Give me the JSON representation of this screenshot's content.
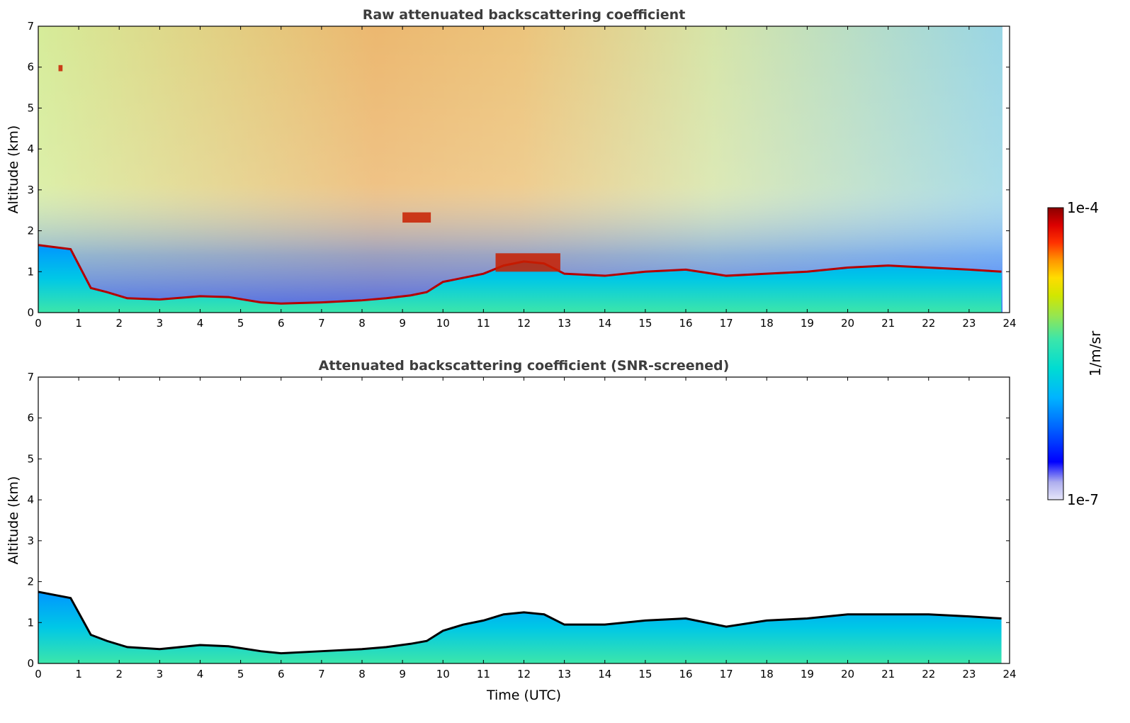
{
  "chart_data": [
    {
      "type": "heatmap",
      "title": "Raw attenuated backscattering coefficient",
      "xlabel": "",
      "ylabel": "Altitude (km)",
      "xlim": [
        0,
        24
      ],
      "ylim": [
        0,
        7
      ],
      "x_ticks": [
        "0",
        "1",
        "2",
        "3",
        "4",
        "5",
        "6",
        "7",
        "8",
        "9",
        "10",
        "11",
        "12",
        "13",
        "14",
        "15",
        "16",
        "17",
        "18",
        "19",
        "20",
        "21",
        "22",
        "23",
        "24"
      ],
      "y_ticks": [
        "0",
        "1",
        "2",
        "3",
        "4",
        "5",
        "6",
        "7"
      ],
      "grid": false,
      "boundary_layer_top_km": [
        [
          0.0,
          1.65
        ],
        [
          0.8,
          1.55
        ],
        [
          1.3,
          0.6
        ],
        [
          1.7,
          0.5
        ],
        [
          2.2,
          0.35
        ],
        [
          3.0,
          0.32
        ],
        [
          4.0,
          0.4
        ],
        [
          4.7,
          0.38
        ],
        [
          5.5,
          0.25
        ],
        [
          6.0,
          0.22
        ],
        [
          7.0,
          0.25
        ],
        [
          8.0,
          0.3
        ],
        [
          8.6,
          0.35
        ],
        [
          9.2,
          0.42
        ],
        [
          9.6,
          0.5
        ],
        [
          10.0,
          0.75
        ],
        [
          10.5,
          0.85
        ],
        [
          11.0,
          0.95
        ],
        [
          11.5,
          1.15
        ],
        [
          12.0,
          1.25
        ],
        [
          12.5,
          1.2
        ],
        [
          13.0,
          0.95
        ],
        [
          14.0,
          0.9
        ],
        [
          15.0,
          1.0
        ],
        [
          16.0,
          1.05
        ],
        [
          17.0,
          0.9
        ],
        [
          18.0,
          0.95
        ],
        [
          19.0,
          1.0
        ],
        [
          20.0,
          1.1
        ],
        [
          21.0,
          1.15
        ],
        [
          22.0,
          1.1
        ],
        [
          23.0,
          1.05
        ],
        [
          23.8,
          1.0
        ]
      ],
      "cloud_layers": [
        {
          "x": [
            9.0,
            9.7
          ],
          "y": [
            2.2,
            2.45
          ]
        },
        {
          "x": [
            0.5,
            0.6
          ],
          "y": [
            5.9,
            6.05
          ]
        },
        {
          "x": [
            11.3,
            12.9
          ],
          "y": [
            1.0,
            1.45
          ]
        }
      ]
    },
    {
      "type": "heatmap",
      "title": "Attenuated backscattering coefficient (SNR-screened)",
      "xlabel": "Time (UTC)",
      "ylabel": "Altitude (km)",
      "xlim": [
        0,
        24
      ],
      "ylim": [
        0,
        7
      ],
      "x_ticks": [
        "0",
        "1",
        "2",
        "3",
        "4",
        "5",
        "6",
        "7",
        "8",
        "9",
        "10",
        "11",
        "12",
        "13",
        "14",
        "15",
        "16",
        "17",
        "18",
        "19",
        "20",
        "21",
        "22",
        "23",
        "24"
      ],
      "y_ticks": [
        "0",
        "1",
        "2",
        "3",
        "4",
        "5",
        "6",
        "7"
      ],
      "grid": false,
      "screened_top_km": [
        [
          0.0,
          1.75
        ],
        [
          0.8,
          1.6
        ],
        [
          1.3,
          0.7
        ],
        [
          1.7,
          0.55
        ],
        [
          2.2,
          0.4
        ],
        [
          3.0,
          0.35
        ],
        [
          4.0,
          0.45
        ],
        [
          4.7,
          0.42
        ],
        [
          5.5,
          0.3
        ],
        [
          6.0,
          0.25
        ],
        [
          7.0,
          0.3
        ],
        [
          8.0,
          0.35
        ],
        [
          8.6,
          0.4
        ],
        [
          9.2,
          0.48
        ],
        [
          9.6,
          0.55
        ],
        [
          10.0,
          0.8
        ],
        [
          10.5,
          0.95
        ],
        [
          11.0,
          1.05
        ],
        [
          11.5,
          1.2
        ],
        [
          12.0,
          1.25
        ],
        [
          12.5,
          1.2
        ],
        [
          13.0,
          0.95
        ],
        [
          14.0,
          0.95
        ],
        [
          15.0,
          1.05
        ],
        [
          16.0,
          1.1
        ],
        [
          17.0,
          0.9
        ],
        [
          18.0,
          1.05
        ],
        [
          19.0,
          1.1
        ],
        [
          20.0,
          1.2
        ],
        [
          21.0,
          1.2
        ],
        [
          22.0,
          1.2
        ],
        [
          23.0,
          1.15
        ],
        [
          23.8,
          1.1
        ]
      ]
    }
  ],
  "colorbar": {
    "label": "1/m/sr",
    "max_label": "1e-4",
    "min_label": "1e-7",
    "colormap": [
      "#e6e6fa",
      "#aeaeee",
      "#0000ff",
      "#0066ff",
      "#00b4ff",
      "#00dcd2",
      "#3ce6aa",
      "#96e650",
      "#d2e600",
      "#ffdc00",
      "#ff9600",
      "#ff3200",
      "#dc0000",
      "#8b0000"
    ]
  }
}
